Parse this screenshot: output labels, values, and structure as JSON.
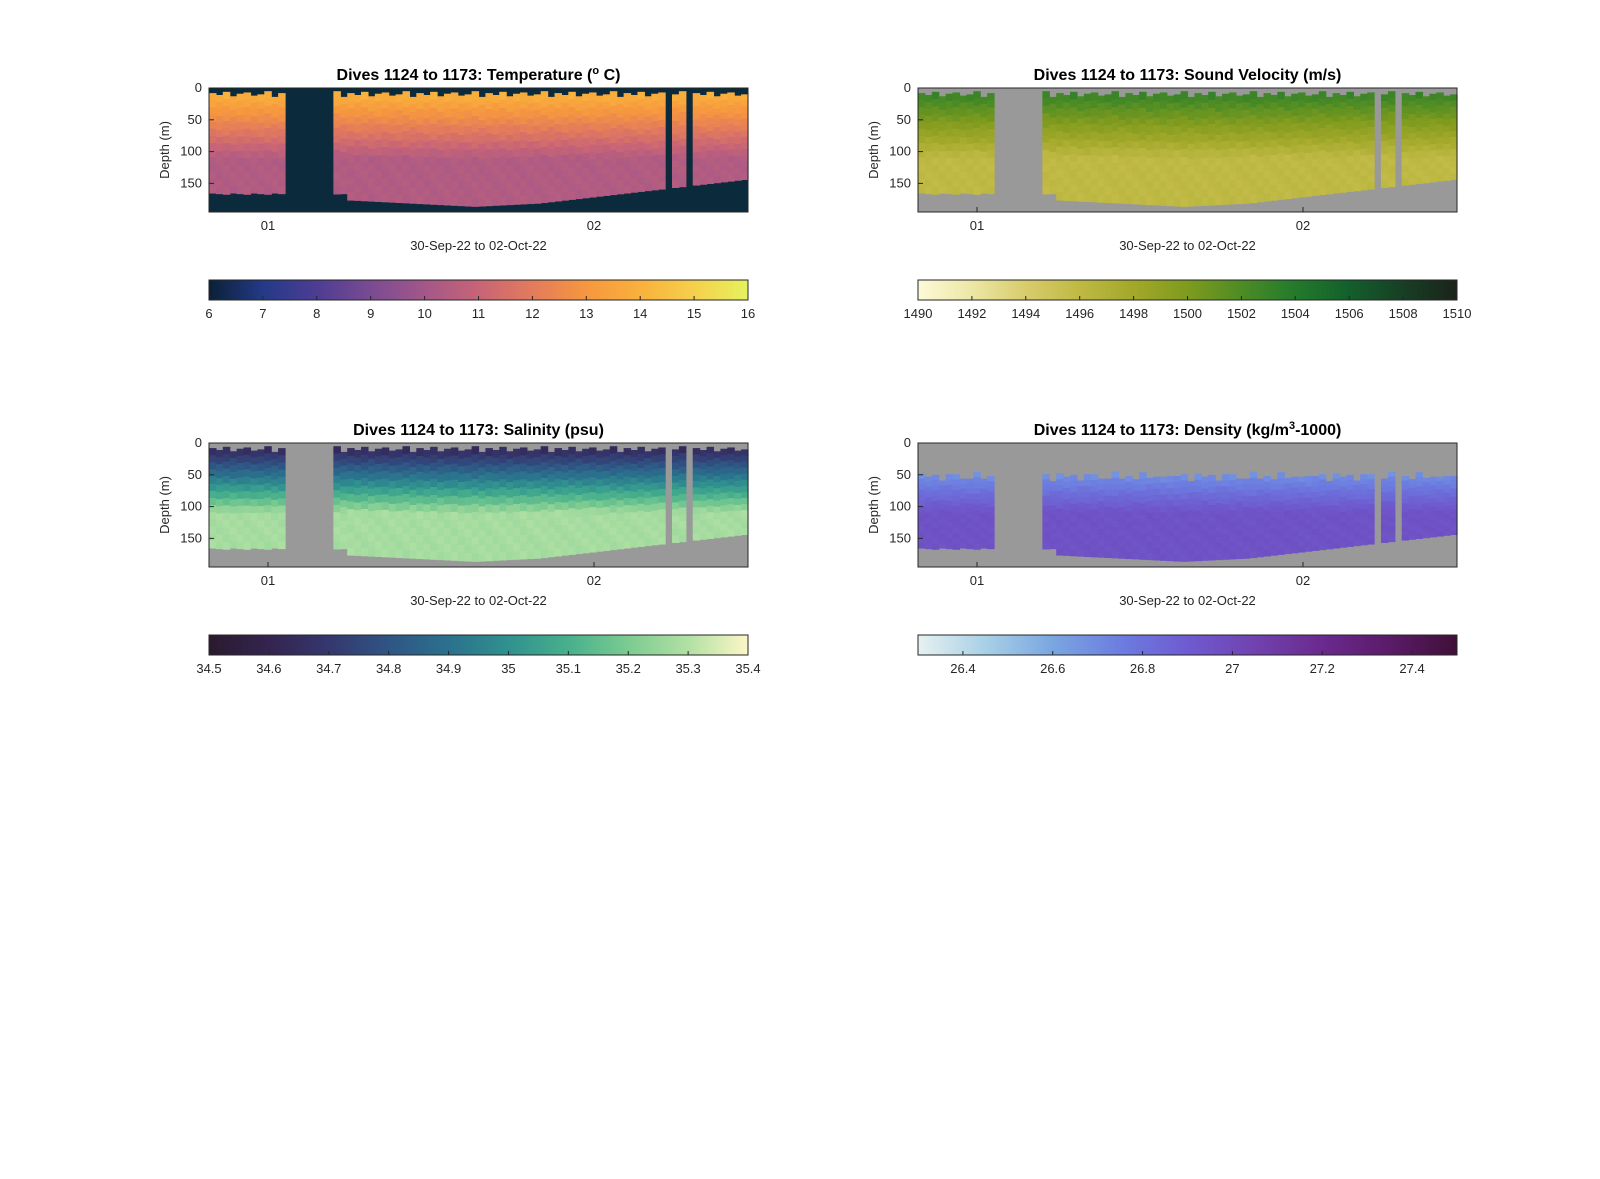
{
  "figure": {
    "background": "#ffffff",
    "axes_color": "#262626"
  },
  "chart_data": [
    {
      "type": "heatmap",
      "title_main": "Dives 1124 to 1173: Temperature (",
      "title_sup": "o",
      "title_tail": " C)",
      "ylabel": "Depth (m)",
      "xlabel": "30-Sep-22 to 02-Oct-22",
      "x_ticks": [
        "01",
        "02"
      ],
      "y_ticks": [
        "0",
        "50",
        "100",
        "150"
      ],
      "ylim": [
        0,
        195
      ],
      "background_color": "#0b2a3c",
      "colorbar": {
        "range": [
          6,
          16
        ],
        "ticks": [
          "6",
          "7",
          "8",
          "9",
          "10",
          "11",
          "12",
          "13",
          "14",
          "15",
          "16"
        ],
        "stops": [
          "#0b2035",
          "#233a87",
          "#4d3d93",
          "#7a4b92",
          "#a35789",
          "#c76477",
          "#e37b5c",
          "#f6973f",
          "#f9b13c",
          "#f5d04d",
          "#e6f25e"
        ],
        "colormap_range": [
          6,
          16
        ]
      },
      "surface_value": 14.3,
      "deep_value": 10.4
    },
    {
      "type": "heatmap",
      "title_main": "Dives 1124 to 1173: Sound Velocity (m/s)",
      "title_sup": "",
      "title_tail": "",
      "ylabel": "Depth (m)",
      "xlabel": "30-Sep-22 to 02-Oct-22",
      "x_ticks": [
        "01",
        "02"
      ],
      "y_ticks": [
        "0",
        "50",
        "100",
        "150"
      ],
      "ylim": [
        0,
        195
      ],
      "background_color": "#999999",
      "colorbar": {
        "range": [
          1490,
          1510
        ],
        "ticks": [
          "1490",
          "1492",
          "1494",
          "1496",
          "1498",
          "1500",
          "1502",
          "1504",
          "1506",
          "1508",
          "1510"
        ],
        "stops": [
          "#fdfad8",
          "#ece7a6",
          "#d8cc6c",
          "#bfb944",
          "#a2a82a",
          "#7f9b1e",
          "#4d8c25",
          "#237a2b",
          "#135f2c",
          "#173f24",
          "#1b2319"
        ],
        "colormap_range": [
          1490,
          1510
        ]
      },
      "surface_value": 1503.6,
      "deep_value": 1496.0
    },
    {
      "type": "heatmap",
      "title_main": "Dives 1124 to 1173: Salinity (psu)",
      "title_sup": "",
      "title_tail": "",
      "ylabel": "Depth (m)",
      "xlabel": "30-Sep-22 to 02-Oct-22",
      "x_ticks": [
        "01",
        "02"
      ],
      "y_ticks": [
        "0",
        "50",
        "100",
        "150"
      ],
      "ylim": [
        0,
        195
      ],
      "background_color": "#999999",
      "colorbar": {
        "range": [
          34.5,
          35.4
        ],
        "ticks": [
          "34.5",
          "34.6",
          "34.7",
          "34.8",
          "34.9",
          "35",
          "35.1",
          "35.2",
          "35.3",
          "35.4"
        ],
        "stops": [
          "#2a1a2e",
          "#34244f",
          "#35376e",
          "#2f5584",
          "#2b718d",
          "#30918f",
          "#48b08c",
          "#7ccb91",
          "#b2e0a4",
          "#fcf7c6"
        ],
        "colormap_range": [
          34.5,
          35.4
        ]
      },
      "surface_value": 34.58,
      "deep_value": 35.28
    },
    {
      "type": "heatmap",
      "title_main": "Dives 1124 to 1173: Density (kg/m",
      "title_sup": "3",
      "title_tail": "-1000)",
      "ylabel": "Depth (m)",
      "xlabel": "30-Sep-22 to 02-Oct-22",
      "x_ticks": [
        "01",
        "02"
      ],
      "y_ticks": [
        "0",
        "50",
        "100",
        "150"
      ],
      "ylim": [
        0,
        195
      ],
      "background_color": "#999999",
      "colorbar": {
        "range": [
          26.3,
          27.5
        ],
        "ticks": [
          "26.4",
          "26.6",
          "26.8",
          "27",
          "27.2",
          "27.4"
        ],
        "stops": [
          "#e6f1f1",
          "#a8d0e6",
          "#7aa6e0",
          "#6c7de0",
          "#6e5bd0",
          "#7142b0",
          "#6a2a8e",
          "#5a1b68",
          "#3f1037"
        ],
        "colormap_range": [
          26.3,
          27.5
        ]
      },
      "surface_value": 26.45,
      "deep_value": 26.95
    }
  ]
}
